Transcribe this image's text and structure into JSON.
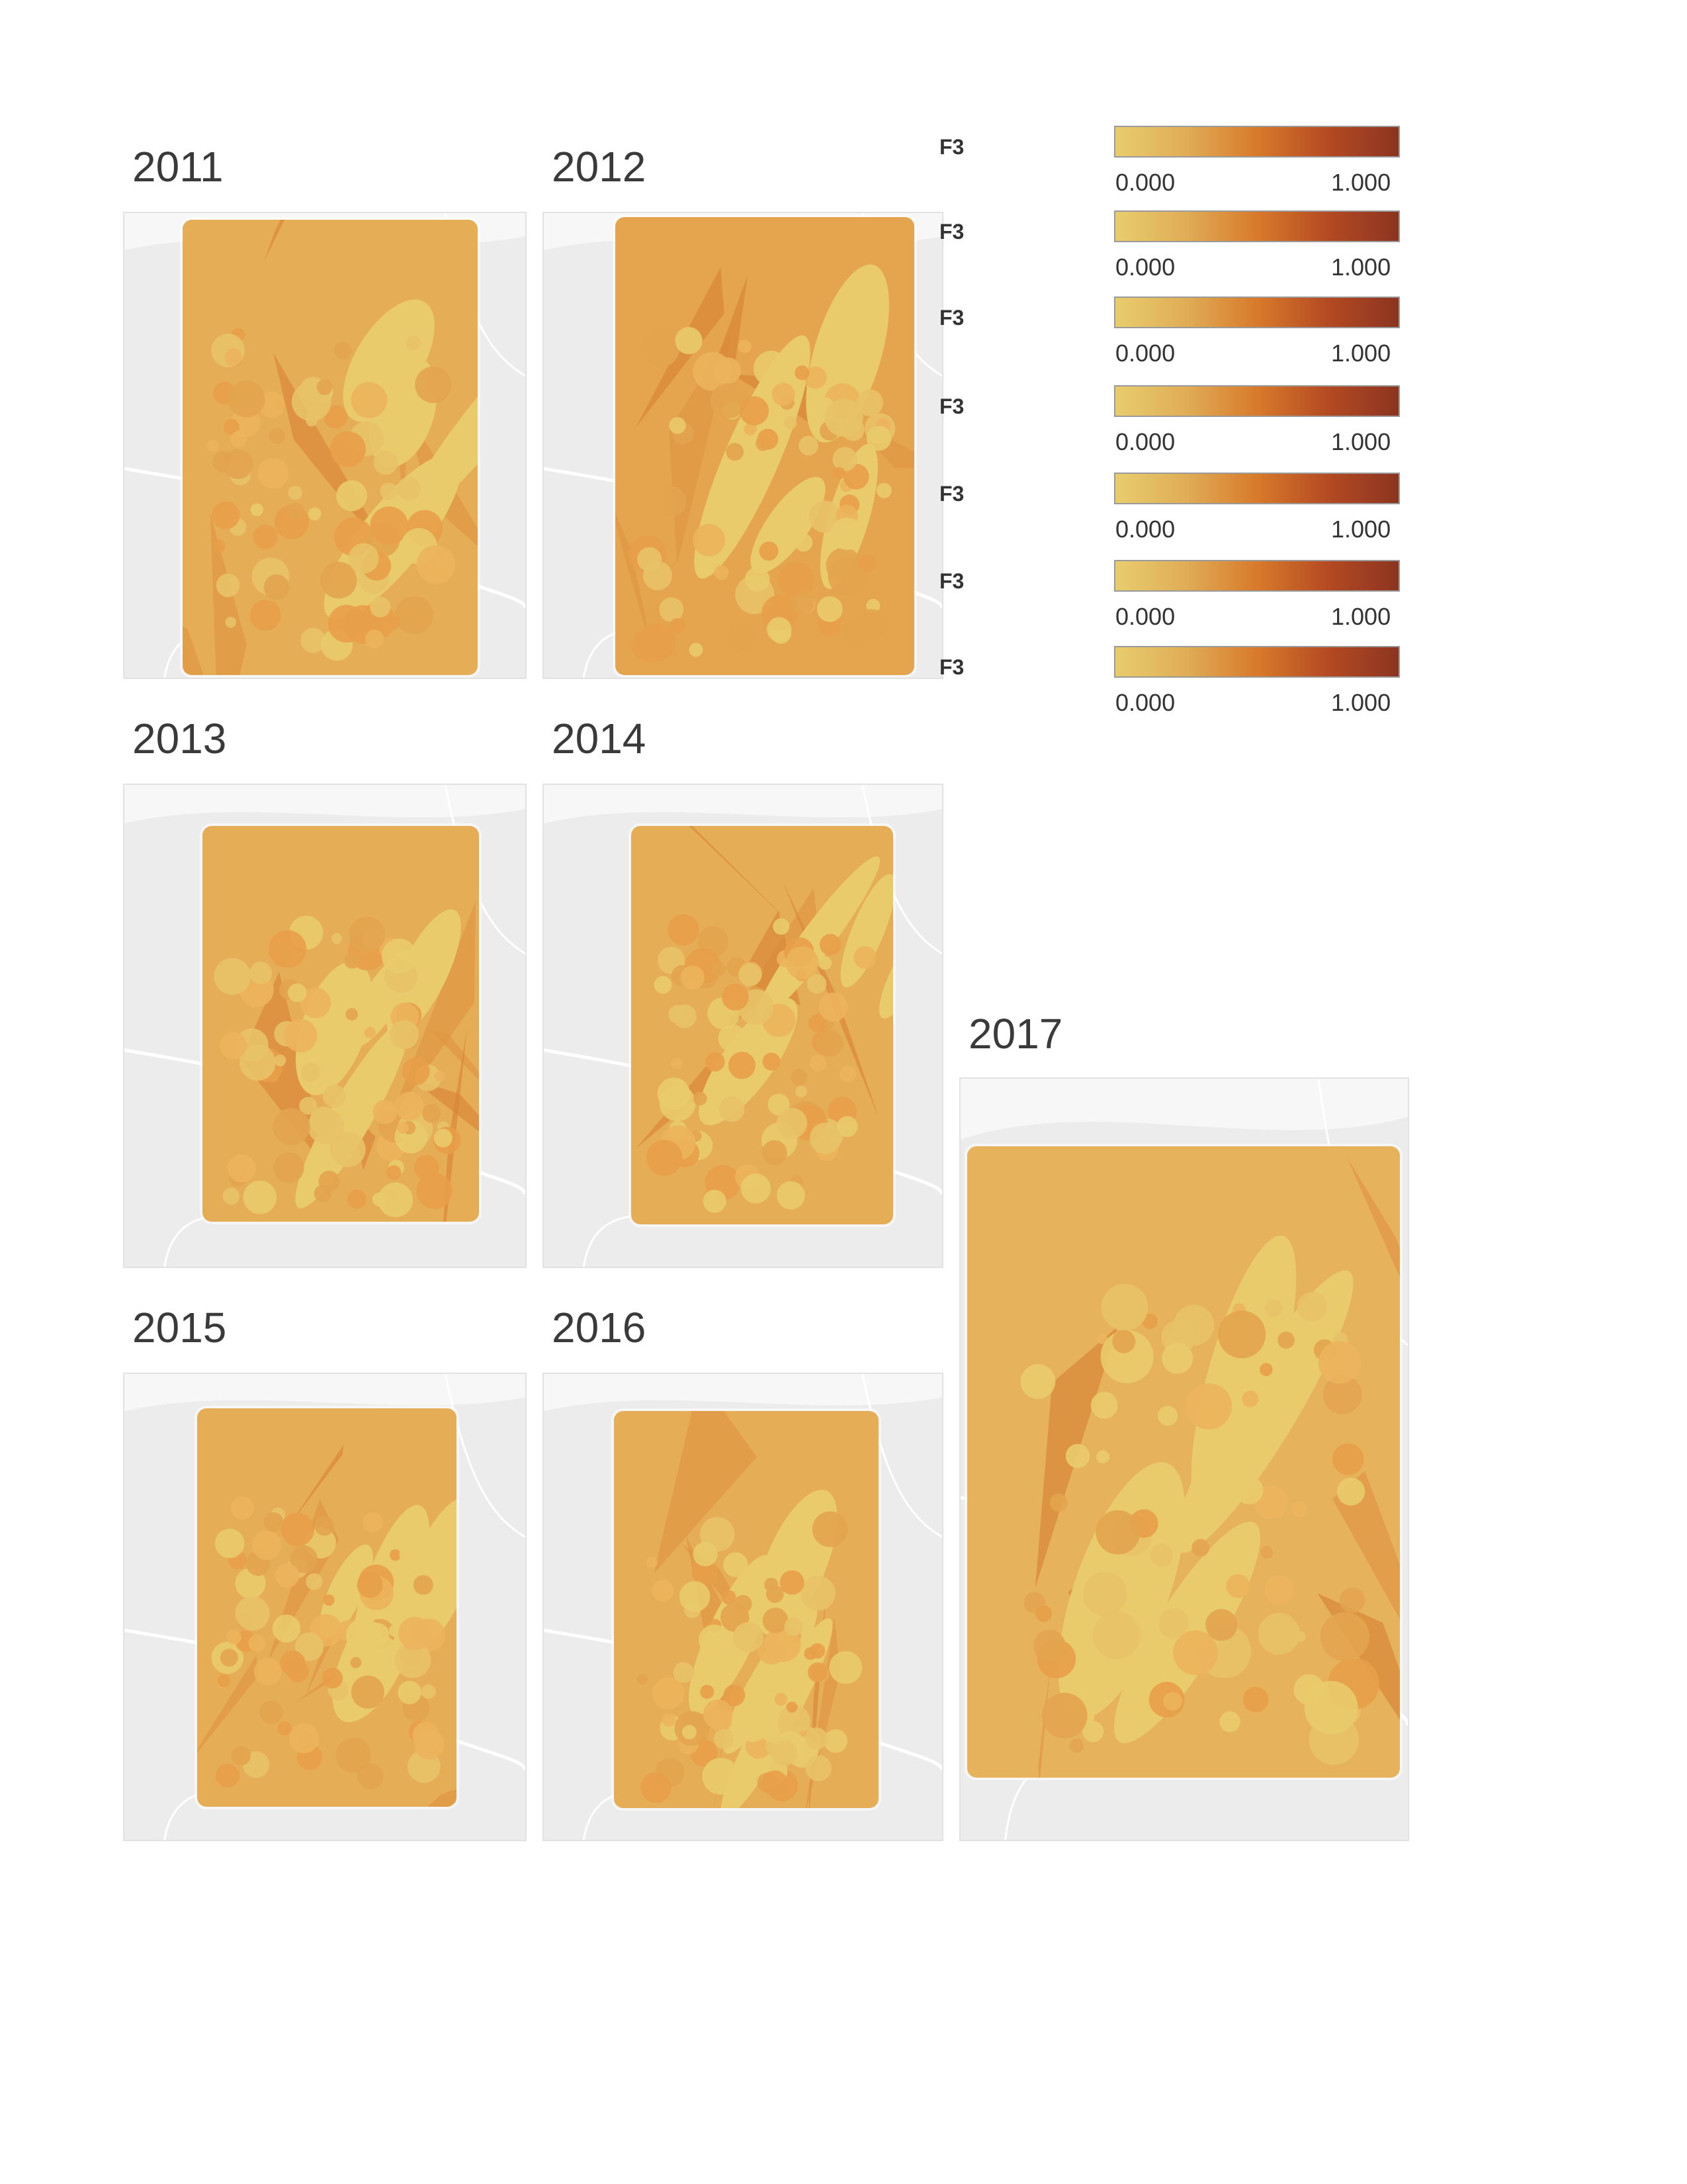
{
  "panels": [
    {
      "year": "2011",
      "shade": "#e6ad57"
    },
    {
      "year": "2012",
      "shade": "#e4a54e"
    },
    {
      "year": "2013",
      "shade": "#e6ad57"
    },
    {
      "year": "2014",
      "shade": "#e6ad57"
    },
    {
      "year": "2015",
      "shade": "#e6ad57"
    },
    {
      "year": "2016",
      "shade": "#e6ad57"
    },
    {
      "year": "2017",
      "shade": "#e6b35c"
    }
  ],
  "legend": {
    "field": "F3",
    "min": "0.000",
    "max": "1.000",
    "count": 7,
    "colors": [
      "#e8cd6d",
      "#e0ad56",
      "#d87a2b",
      "#b44a23",
      "#8c3420"
    ]
  },
  "palette": {
    "map_background": "#ececec",
    "road": "#ffffff",
    "low": "#e8cd6d",
    "mid": "#e0a14b",
    "high": "#c95a25"
  }
}
